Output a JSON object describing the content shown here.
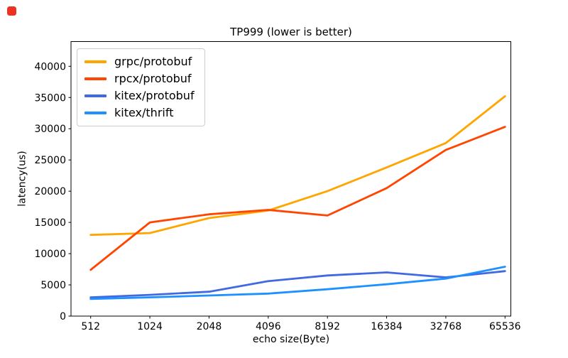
{
  "indicator": {
    "color": "#EB3323"
  },
  "chart_data": {
    "type": "line",
    "title": "TP999 (lower is better)",
    "xlabel": "echo size(Byte)",
    "ylabel": "latency(us)",
    "x_scale": "log2-categorical",
    "categories": [
      "512",
      "1024",
      "2048",
      "4096",
      "8192",
      "16384",
      "32768",
      "65536"
    ],
    "y_ticks": [
      0,
      5000,
      10000,
      15000,
      20000,
      25000,
      30000,
      35000,
      40000
    ],
    "ylim": [
      0,
      44000
    ],
    "grid": false,
    "legend_position": "upper-left",
    "axis_color": "#000000",
    "series": [
      {
        "name": "grpc/protobuf",
        "color": "#FFA500",
        "values": [
          13000,
          13300,
          15700,
          16900,
          20000,
          23800,
          27700,
          35200
        ]
      },
      {
        "name": "rpcx/protobuf",
        "color": "#FF4500",
        "values": [
          7400,
          15000,
          16300,
          17000,
          16100,
          20500,
          26600,
          30300
        ]
      },
      {
        "name": "kitex/protobuf",
        "color": "#4169E1",
        "values": [
          3000,
          3400,
          3900,
          5600,
          6500,
          7000,
          6200,
          7200
        ]
      },
      {
        "name": "kitex/thrift",
        "color": "#1E90FF",
        "values": [
          2750,
          3000,
          3300,
          3600,
          4300,
          5100,
          6000,
          7900
        ]
      }
    ]
  }
}
